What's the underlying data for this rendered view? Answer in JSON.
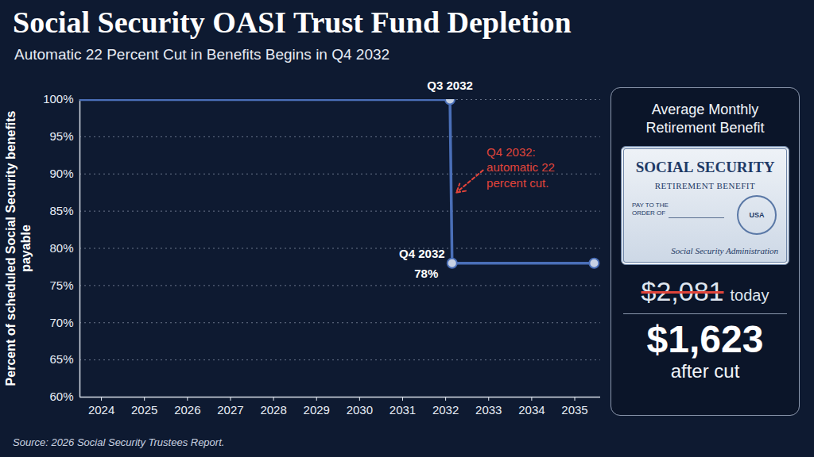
{
  "chart_data": {
    "type": "line",
    "title": "Social Security OASI Trust Fund Depletion",
    "subtitle": "Automatic 22 Percent Cut in Benefits Begins in Q4 2032",
    "ylabel": "Percent of scheduled Social Security benefits payable",
    "source": "Source: 2026 Social Security Trustees Report.",
    "xlim": [
      2023.5,
      2035.6
    ],
    "xticks": [
      2024,
      2025,
      2026,
      2027,
      2028,
      2029,
      2030,
      2031,
      2032,
      2033,
      2034,
      2035
    ],
    "ylim": [
      60,
      100
    ],
    "yticks": [
      {
        "value": 60,
        "label": "60%"
      },
      {
        "value": 65,
        "label": "65%"
      },
      {
        "value": 70,
        "label": "70%"
      },
      {
        "value": 75,
        "label": "75%"
      },
      {
        "value": 80,
        "label": "80%"
      },
      {
        "value": 85,
        "label": "85%"
      },
      {
        "value": 90,
        "label": "90%"
      },
      {
        "value": 95,
        "label": "95%"
      },
      {
        "value": 100,
        "label": "100%"
      }
    ],
    "grid": true,
    "series": [
      {
        "type": "line",
        "color": "#4a6fb8",
        "x": [
          2023.5,
          2032.1,
          2032.15,
          2035.45
        ],
        "values": [
          100,
          100,
          78,
          78
        ]
      },
      {
        "type": "scatter",
        "color": "#4a6fb8",
        "marker": "circle",
        "x": [
          2032.1,
          2032.15,
          2035.45
        ],
        "values": [
          100,
          78,
          78
        ]
      }
    ],
    "annotations": [
      {
        "text": "Q3 2032",
        "x": 2032.1,
        "y": 101.8
      },
      {
        "text": "Q4 2032",
        "x": 2031.45,
        "y": 79.2
      },
      {
        "text": "78%",
        "x": 2031.55,
        "y": 76.6
      },
      {
        "text": "Q4 2032: automatic 22 percent cut.",
        "x": 2032.95,
        "y": 91,
        "color": "#e0443a"
      }
    ]
  },
  "side_panel": {
    "heading": "Average Monthly Retirement Benefit",
    "card": {
      "title": "SOCIAL SECURITY",
      "subtitle": "RETIREMENT BENEFIT",
      "payee": "PAY TO THE ORDER OF",
      "seal": "USA",
      "signature": "Social Security Administration"
    },
    "before": {
      "amount": "$2,081",
      "label": "today"
    },
    "after": {
      "amount": "$1,623",
      "label": "after cut"
    }
  }
}
